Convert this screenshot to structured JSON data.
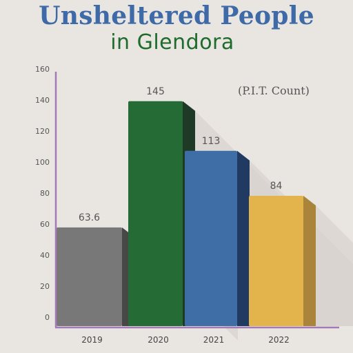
{
  "chart_data": {
    "type": "bar",
    "title": "Unsheltered People",
    "subtitle": "in Glendora",
    "annotation": "(P.I.T. Count)",
    "categories": [
      "2019",
      "2020",
      "2021",
      "2022"
    ],
    "values": [
      63.6,
      145,
      113,
      84
    ],
    "data_labels": [
      "63.6",
      "145",
      "113",
      "84"
    ],
    "colors": [
      "#787878",
      "#256b36",
      "#3f6ea7",
      "#e3b34c"
    ],
    "side_colors": [
      "#474747",
      "#1e3a26",
      "#213a62",
      "#a9843a"
    ],
    "axis_color": "#a37ab5",
    "yticks": [
      0,
      20,
      40,
      60,
      80,
      100,
      120,
      140,
      160
    ],
    "ylim": [
      0,
      160
    ],
    "xlabel": "",
    "ylabel": "",
    "grid": false,
    "legend": "none"
  }
}
